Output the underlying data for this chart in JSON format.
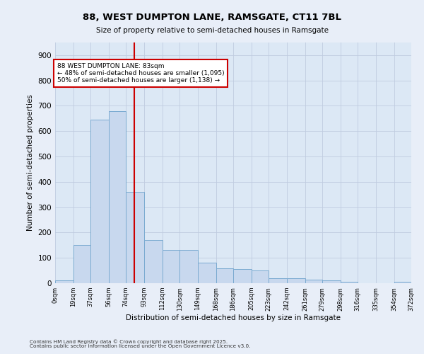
{
  "title1": "88, WEST DUMPTON LANE, RAMSGATE, CT11 7BL",
  "title2": "Size of property relative to semi-detached houses in Ramsgate",
  "xlabel": "Distribution of semi-detached houses by size in Ramsgate",
  "ylabel": "Number of semi-detached properties",
  "footnote": "Contains HM Land Registry data © Crown copyright and database right 2025.\nContains public sector information licensed under the Open Government Licence v3.0.",
  "bin_labels": [
    "0sqm",
    "19sqm",
    "37sqm",
    "56sqm",
    "74sqm",
    "93sqm",
    "112sqm",
    "130sqm",
    "149sqm",
    "168sqm",
    "186sqm",
    "205sqm",
    "223sqm",
    "242sqm",
    "261sqm",
    "279sqm",
    "298sqm",
    "316sqm",
    "335sqm",
    "354sqm",
    "372sqm"
  ],
  "bar_heights": [
    10,
    150,
    645,
    680,
    360,
    170,
    130,
    130,
    80,
    60,
    55,
    50,
    20,
    20,
    15,
    10,
    5,
    0,
    0,
    5
  ],
  "bin_edges": [
    0,
    19,
    37,
    56,
    74,
    93,
    112,
    130,
    149,
    168,
    186,
    205,
    223,
    242,
    261,
    279,
    298,
    316,
    335,
    354,
    372
  ],
  "property_size": 83,
  "bar_color": "#c8d8ee",
  "bar_edge_color": "#7aaad0",
  "vline_color": "#cc0000",
  "annotation_text": "88 WEST DUMPTON LANE: 83sqm\n← 48% of semi-detached houses are smaller (1,095)\n50% of semi-detached houses are larger (1,138) →",
  "annotation_box_color": "#ffffff",
  "annotation_box_edge": "#cc0000",
  "ylim": [
    0,
    950
  ],
  "yticks": [
    0,
    100,
    200,
    300,
    400,
    500,
    600,
    700,
    800,
    900
  ],
  "background_color": "#e8eef8",
  "plot_bg_color": "#dce8f5",
  "grid_color": "#c0cce0"
}
